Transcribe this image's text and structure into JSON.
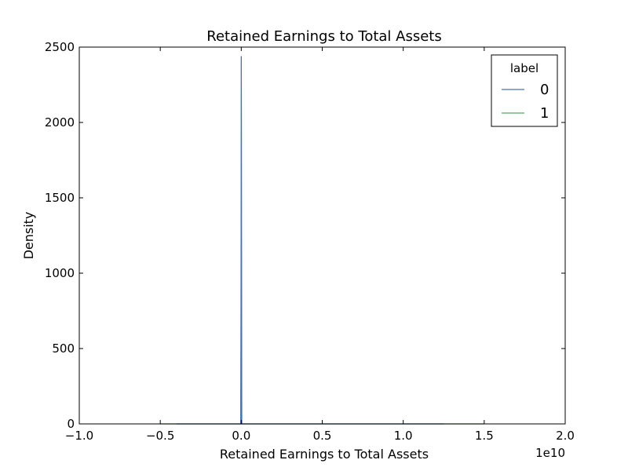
{
  "chart_data": {
    "type": "line",
    "title": "Retained Earnings to Total Assets",
    "xlabel": "Retained Earnings to Total Assets",
    "ylabel": "Density",
    "x_offset_label": "1e10",
    "xlim": [
      -1.0,
      2.0
    ],
    "ylim": [
      0,
      2500
    ],
    "xticks": [
      -1.0,
      -0.5,
      0.0,
      0.5,
      1.0,
      1.5,
      2.0
    ],
    "xtick_labels": [
      "−1.0",
      "−0.5",
      "0.0",
      "0.5",
      "1.0",
      "1.5",
      "2.0"
    ],
    "yticks": [
      0,
      500,
      1000,
      1500,
      2000,
      2500
    ],
    "ytick_labels": [
      "0",
      "500",
      "1000",
      "1500",
      "2000",
      "2500"
    ],
    "grid": false,
    "legend": {
      "title": "label",
      "placement": "top-right"
    },
    "series": [
      {
        "name": "0",
        "color": "#4c72b0",
        "x": [
          -0.4,
          -0.1,
          -0.01,
          -0.003,
          -0.001,
          0.0,
          0.001,
          0.003,
          0.01,
          0.1,
          0.5,
          1.0,
          1.25
        ],
        "y": [
          0,
          0,
          0,
          0,
          1100,
          2440,
          2010,
          0,
          0,
          0,
          0,
          0,
          0
        ]
      },
      {
        "name": "1",
        "color": "#55a868",
        "x": [
          -0.5,
          -0.1,
          -0.01,
          -0.003,
          -0.001,
          0.0,
          0.001,
          0.003,
          0.01,
          0.1,
          0.5,
          1.0,
          1.5
        ],
        "y": [
          0,
          0,
          0,
          0,
          500,
          1420,
          700,
          0,
          0,
          0,
          0,
          0,
          0
        ]
      }
    ]
  }
}
